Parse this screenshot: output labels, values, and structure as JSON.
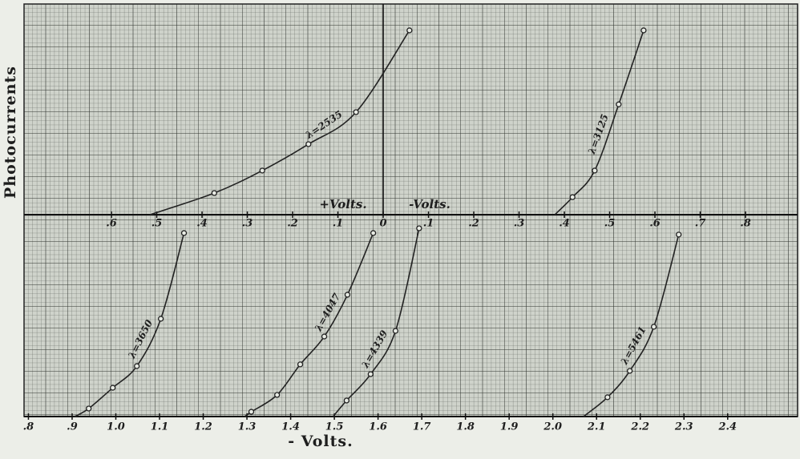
{
  "chart_data": [
    {
      "type": "line",
      "y_label": "Photocurrents",
      "annotations": [
        "+Volts.",
        "-Volts."
      ],
      "xlim": [
        -0.793,
        0.915
      ],
      "ylim": [
        0,
        9.74
      ],
      "xticks": [
        {
          "value": -0.6,
          "label": ".6"
        },
        {
          "value": -0.5,
          "label": ".5"
        },
        {
          "value": -0.4,
          "label": ".4"
        },
        {
          "value": -0.3,
          "label": ".3"
        },
        {
          "value": -0.2,
          "label": ".2"
        },
        {
          "value": -0.1,
          "label": ".1"
        },
        0,
        {
          "value": 0.1,
          "label": ".1"
        },
        {
          "value": 0.2,
          "label": ".2"
        },
        {
          "value": 0.3,
          "label": ".3"
        },
        {
          "value": 0.4,
          "label": ".4"
        },
        {
          "value": 0.5,
          "label": ".5"
        },
        {
          "value": 0.6,
          "label": ".6"
        },
        {
          "value": 0.7,
          "label": ".7"
        },
        {
          "value": 0.8,
          "label": ".8"
        }
      ],
      "series": [
        {
          "name": "λ=2535",
          "color": "#222222",
          "x": [
            -0.515,
            -0.373,
            -0.267,
            -0.165,
            -0.06,
            0.058
          ],
          "values": [
            0,
            1.0,
            2.04,
            3.26,
            4.74,
            8.52
          ]
        },
        {
          "name": "λ=3125",
          "color": "#222222",
          "x": [
            0.379,
            0.418,
            0.467,
            0.52,
            0.575
          ],
          "values": [
            0,
            0.81,
            2.04,
            5.1,
            8.52
          ]
        }
      ]
    },
    {
      "type": "line",
      "x_label": "- Volts.",
      "xlim": [
        0.79,
        2.56
      ],
      "ylim": [
        0,
        9.33
      ],
      "xticks": [
        {
          "value": 0.8,
          "label": ".8"
        },
        {
          "value": 0.9,
          "label": ".9"
        },
        {
          "value": 1,
          "label": "1.0"
        },
        1.1,
        1.2,
        1.3,
        1.4,
        1.5,
        1.6,
        1.7,
        1.8,
        1.9,
        {
          "value": 2,
          "label": "2.0"
        },
        2.1,
        2.2,
        2.3,
        2.4
      ],
      "series": [
        {
          "name": "λ=3650",
          "color": "#222222",
          "x": [
            0.906,
            0.938,
            0.993,
            1.048,
            1.103,
            1.156
          ],
          "values": [
            0,
            0.37,
            1.33,
            2.33,
            4.52,
            8.48
          ]
        },
        {
          "name": "λ=4047",
          "color": "#222222",
          "x": [
            1.295,
            1.31,
            1.369,
            1.422,
            1.477,
            1.53,
            1.589
          ],
          "values": [
            0,
            0.22,
            1.0,
            2.41,
            3.7,
            5.63,
            8.48
          ]
        },
        {
          "name": "λ=4339",
          "color": "#222222",
          "x": [
            1.497,
            1.528,
            1.583,
            1.64,
            1.694
          ],
          "values": [
            0,
            0.74,
            1.96,
            3.96,
            8.7
          ]
        },
        {
          "name": "λ=5461",
          "color": "#222222",
          "x": [
            2.07,
            2.125,
            2.176,
            2.231,
            2.288
          ],
          "values": [
            0,
            0.89,
            2.11,
            4.15,
            8.41
          ]
        }
      ]
    }
  ]
}
